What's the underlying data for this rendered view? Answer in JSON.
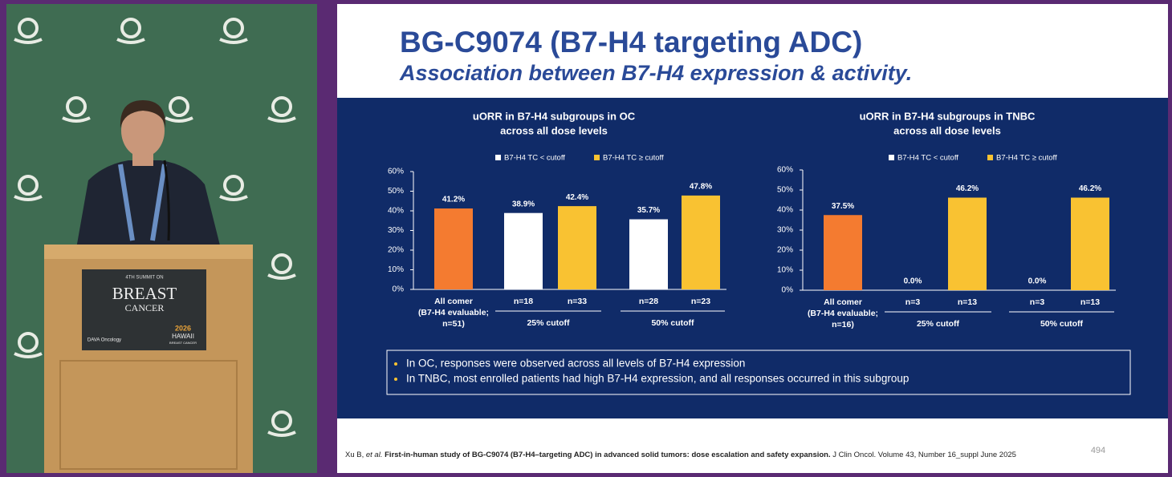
{
  "video": {
    "podium": {
      "summit": "4TH SUMMIT ON",
      "breast": "BREAST",
      "cancer": "CANCER",
      "sponsor": "DAVA Oncology",
      "year": "2026",
      "place": "HAWAII",
      "place_sub": "BREAST CANCER"
    }
  },
  "slide": {
    "title": "BG-C9074 (B7-H4 targeting ADC)",
    "subtitle": "Association between B7-H4 expression & activity.",
    "bullets": [
      "In OC, responses were observed across all levels of B7-H4 expression",
      "In TNBC, most enrolled patients had high B7-H4 expression, and all responses occurred in this subgroup"
    ],
    "citation": {
      "authors": "Xu B, ",
      "etal": "et al.",
      "study": " First-in-human study of BG-C9074 (B7-H4–targeting ADC) in advanced solid tumors: dose escalation and safety expansion.",
      "journal": " J Clin Oncol. Volume 43, Number 16_suppl June 2025"
    },
    "page_number": "494"
  },
  "chart_data": [
    {
      "type": "bar",
      "title": [
        "uORR in B7-H4 subgroups in OC",
        "across all dose levels"
      ],
      "legend": [
        {
          "name": "B7-H4 TC < cutoff",
          "color": "#ffffff"
        },
        {
          "name": "B7-H4 TC ≥ cutoff",
          "color": "#f9c232"
        }
      ],
      "categories": [
        [
          "All comer",
          "(B7-H4 evaluable;",
          "n=51)"
        ],
        "n=18",
        "n=33",
        "n=28",
        "n=23"
      ],
      "groups": [
        "25% cutoff",
        "50% cutoff"
      ],
      "values": [
        41.2,
        38.9,
        42.4,
        35.7,
        47.8
      ],
      "value_labels": [
        "41.2%",
        "38.9%",
        "42.4%",
        "35.7%",
        "47.8%"
      ],
      "colors": [
        "#f47b30",
        "#ffffff",
        "#f9c232",
        "#ffffff",
        "#f9c232"
      ],
      "ylim": [
        0,
        60
      ],
      "yticks": [
        {
          "value": 0,
          "label": "0%"
        },
        {
          "value": 10,
          "label": "10%"
        },
        {
          "value": 20,
          "label": "20%"
        },
        {
          "value": 30,
          "label": "30%"
        },
        {
          "value": 40,
          "label": "40%"
        },
        {
          "value": 50,
          "label": "50%"
        },
        {
          "value": 60,
          "label": "60%"
        }
      ]
    },
    {
      "type": "bar",
      "title": [
        "uORR in B7-H4 subgroups in TNBC",
        "across all dose levels"
      ],
      "legend": [
        {
          "name": "B7-H4 TC < cutoff",
          "color": "#ffffff"
        },
        {
          "name": "B7-H4 TC ≥ cutoff",
          "color": "#f9c232"
        }
      ],
      "categories": [
        [
          "All comer",
          "(B7-H4 evaluable;",
          "n=16)"
        ],
        "n=3",
        "n=13",
        "n=3",
        "n=13"
      ],
      "groups": [
        "25% cutoff",
        "50% cutoff"
      ],
      "values": [
        37.5,
        0.0,
        46.2,
        0.0,
        46.2
      ],
      "value_labels": [
        "37.5%",
        "0.0%",
        "46.2%",
        "0.0%",
        "46.2%"
      ],
      "colors": [
        "#f47b30",
        "#ffffff",
        "#f9c232",
        "#ffffff",
        "#f9c232"
      ],
      "ylim": [
        0,
        60
      ],
      "yticks": [
        {
          "value": 0,
          "label": "0%"
        },
        {
          "value": 10,
          "label": "10%"
        },
        {
          "value": 20,
          "label": "20%"
        },
        {
          "value": 30,
          "label": "30%"
        },
        {
          "value": 40,
          "label": "40%"
        },
        {
          "value": 50,
          "label": "50%"
        },
        {
          "value": 60,
          "label": "60%"
        }
      ]
    }
  ]
}
